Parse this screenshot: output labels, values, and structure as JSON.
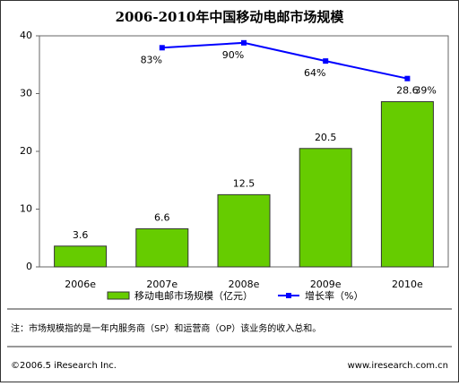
{
  "chart_data": {
    "type": "bar",
    "title": "2006-2010年中国移动电邮市场规模",
    "categories": [
      "2006e",
      "2007e",
      "2008e",
      "2009e",
      "2010e"
    ],
    "series": [
      {
        "name": "移动电邮市场规模（亿元）",
        "type": "bar",
        "color": "#66cc00",
        "values": [
          3.6,
          6.6,
          12.5,
          20.5,
          28.6
        ]
      },
      {
        "name": "增长率（%）",
        "type": "line",
        "axis": "y2",
        "color": "#0000ff",
        "values": [
          null,
          83,
          90,
          64,
          39
        ],
        "value_labels": [
          null,
          "83%",
          "90%",
          "64%",
          "39%"
        ]
      }
    ],
    "ylim": [
      0,
      40
    ],
    "yticks": [
      0,
      10,
      20,
      30,
      40
    ],
    "y2lim": [
      -230,
      100
    ],
    "legend": "bottom",
    "note": "注：市场规模指的是一年内服务商（SP）和运营商（OP）该业务的收入总和。",
    "copyright": "©2006.5 iResearch Inc.",
    "website": "www.iresearch.com.cn"
  }
}
